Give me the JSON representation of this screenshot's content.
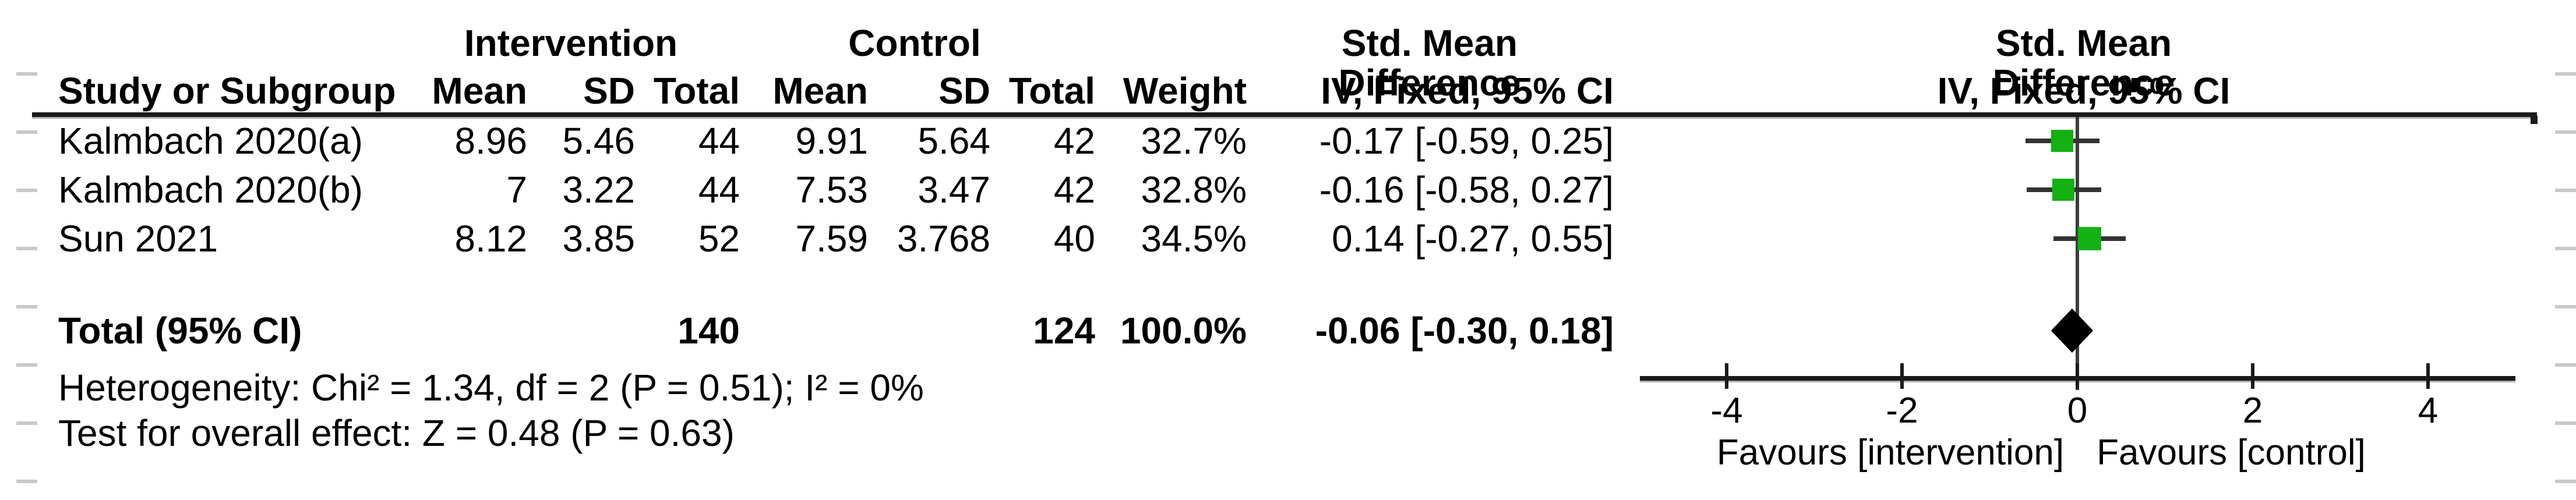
{
  "headers": {
    "group_intervention": "Intervention",
    "group_control": "Control",
    "group_smd_table": "Std. Mean Difference",
    "group_smd_plot": "Std. Mean Difference",
    "study": "Study or Subgroup",
    "mean": "Mean",
    "sd": "SD",
    "total": "Total",
    "weight": "Weight",
    "iv_fixed_table": "IV, Fixed, 95% CI",
    "iv_fixed_plot": "IV, Fixed, 95% CI"
  },
  "table": {
    "rows": [
      {
        "study": "Kalmbach 2020(a)",
        "mean_i": "8.96",
        "sd_i": "5.46",
        "total_i": "44",
        "mean_c": "9.91",
        "sd_c": "5.64",
        "total_c": "42",
        "weight": "32.7%",
        "ci": "-0.17 [-0.59, 0.25]"
      },
      {
        "study": "Kalmbach 2020(b)",
        "mean_i": "7",
        "sd_i": "3.22",
        "total_i": "44",
        "mean_c": "7.53",
        "sd_c": "3.47",
        "total_c": "42",
        "weight": "32.8%",
        "ci": "-0.16 [-0.58, 0.27]"
      },
      {
        "study": "Sun 2021",
        "mean_i": "8.12",
        "sd_i": "3.85",
        "total_i": "52",
        "mean_c": "7.59",
        "sd_c": "3.768",
        "total_c": "40",
        "weight": "34.5%",
        "ci": "0.14 [-0.27, 0.55]"
      }
    ],
    "total_row": {
      "study": "Total (95% CI)",
      "total_i": "140",
      "total_c": "124",
      "weight": "100.0%",
      "ci": "-0.06 [-0.30, 0.18]"
    }
  },
  "footer": {
    "heterogeneity": "Heterogeneity: Chi² = 1.34, df = 2 (P = 0.51); I² = 0%",
    "overall_effect": "Test for overall effect: Z = 0.48 (P = 0.63)"
  },
  "colors": {
    "marker_green": "#12b212",
    "diamond_black": "#000000",
    "ci_line_dark": "#333333",
    "axis_black": "#1a1a1a",
    "shadow_gray": "#b4b4b4",
    "edge_dash_gray": "#c9c9c9"
  },
  "chart_data": {
    "type": "scatter",
    "variant": "forest_plot_fixed_effect",
    "title": "Std. Mean Difference",
    "subtitle": "IV, Fixed, 95% CI",
    "x_ticks": [
      -4,
      -2,
      0,
      2,
      4
    ],
    "xlim": [
      -5,
      5
    ],
    "zero_line": 0,
    "favours_left": "Favours [intervention]",
    "favours_right": "Favours [control]",
    "studies": [
      {
        "label": "Kalmbach 2020(a)",
        "smd": -0.17,
        "ci_low": -0.59,
        "ci_high": 0.25,
        "weight_pct": 32.7
      },
      {
        "label": "Kalmbach 2020(b)",
        "smd": -0.16,
        "ci_low": -0.58,
        "ci_high": 0.27,
        "weight_pct": 32.8
      },
      {
        "label": "Sun 2021",
        "smd": 0.14,
        "ci_low": -0.27,
        "ci_high": 0.55,
        "weight_pct": 34.5
      }
    ],
    "total": {
      "label": "Total (95% CI)",
      "smd": -0.06,
      "ci_low": -0.3,
      "ci_high": 0.18
    },
    "heterogeneity": {
      "chi2": 1.34,
      "df": 2,
      "p": 0.51,
      "i2_pct": 0
    },
    "overall_effect": {
      "z": 0.48,
      "p": 0.63
    }
  }
}
